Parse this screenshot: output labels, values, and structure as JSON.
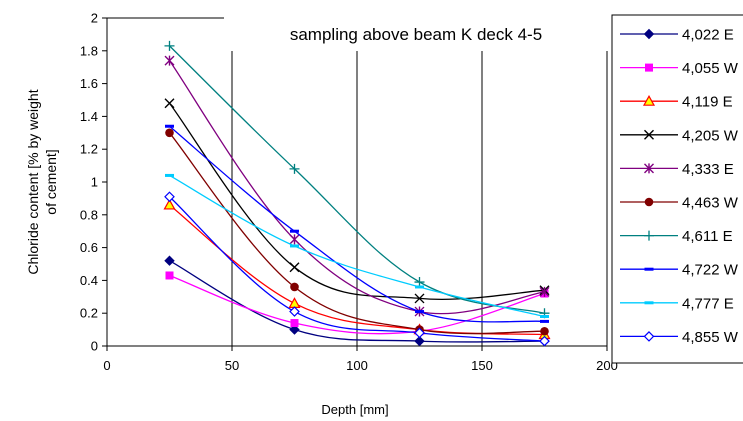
{
  "chart_data": {
    "type": "line",
    "title": "sampling above beam K deck 4-5",
    "xlabel": "Depth [mm]",
    "ylabel_lines": [
      "Chloride content [% by weight",
      "of cement]"
    ],
    "xlim": [
      0,
      200
    ],
    "ylim": [
      0,
      2
    ],
    "xticks": [
      "0",
      "50",
      "100",
      "150",
      "200"
    ],
    "yticks": [
      "0",
      "0.2",
      "0.4",
      "0.6",
      "0.8",
      "1",
      "1.2",
      "1.4",
      "1.6",
      "1.8",
      "2"
    ],
    "grid": "vertical",
    "legend_position": "right",
    "x": [
      25,
      75,
      125,
      175
    ],
    "series": [
      {
        "name": "4,022 E",
        "color": "#000080",
        "marker": "diamond-filled",
        "values": [
          0.52,
          0.1,
          0.03,
          0.03
        ]
      },
      {
        "name": "4,055 W",
        "color": "#FF00FF",
        "marker": "square-filled",
        "values": [
          0.43,
          0.14,
          0.09,
          0.32
        ]
      },
      {
        "name": "4,119 E",
        "color": "#FF0000",
        "marker": "triangle-yellow",
        "values": [
          0.86,
          0.26,
          0.1,
          0.07
        ]
      },
      {
        "name": "4,205 W",
        "color": "#000000",
        "marker": "x",
        "values": [
          1.48,
          0.48,
          0.29,
          0.34
        ]
      },
      {
        "name": "4,333 E",
        "color": "#800080",
        "marker": "star",
        "values": [
          1.74,
          0.65,
          0.21,
          0.33
        ]
      },
      {
        "name": "4,463 W",
        "color": "#800000",
        "marker": "circle-filled",
        "values": [
          1.3,
          0.36,
          0.1,
          0.09
        ]
      },
      {
        "name": "4,611 E",
        "color": "#008080",
        "marker": "plus",
        "values": [
          1.83,
          1.08,
          0.39,
          0.2
        ]
      },
      {
        "name": "4,722 W",
        "color": "#0000FF",
        "marker": "dash",
        "values": [
          1.34,
          0.7,
          0.21,
          0.15
        ]
      },
      {
        "name": "4,777 E",
        "color": "#00CCFF",
        "marker": "dash",
        "values": [
          1.04,
          0.61,
          0.36,
          0.18
        ]
      },
      {
        "name": "4,855 W",
        "color": "#0000FF",
        "marker": "diamond-open",
        "values": [
          0.91,
          0.21,
          0.08,
          0.03
        ]
      }
    ]
  }
}
